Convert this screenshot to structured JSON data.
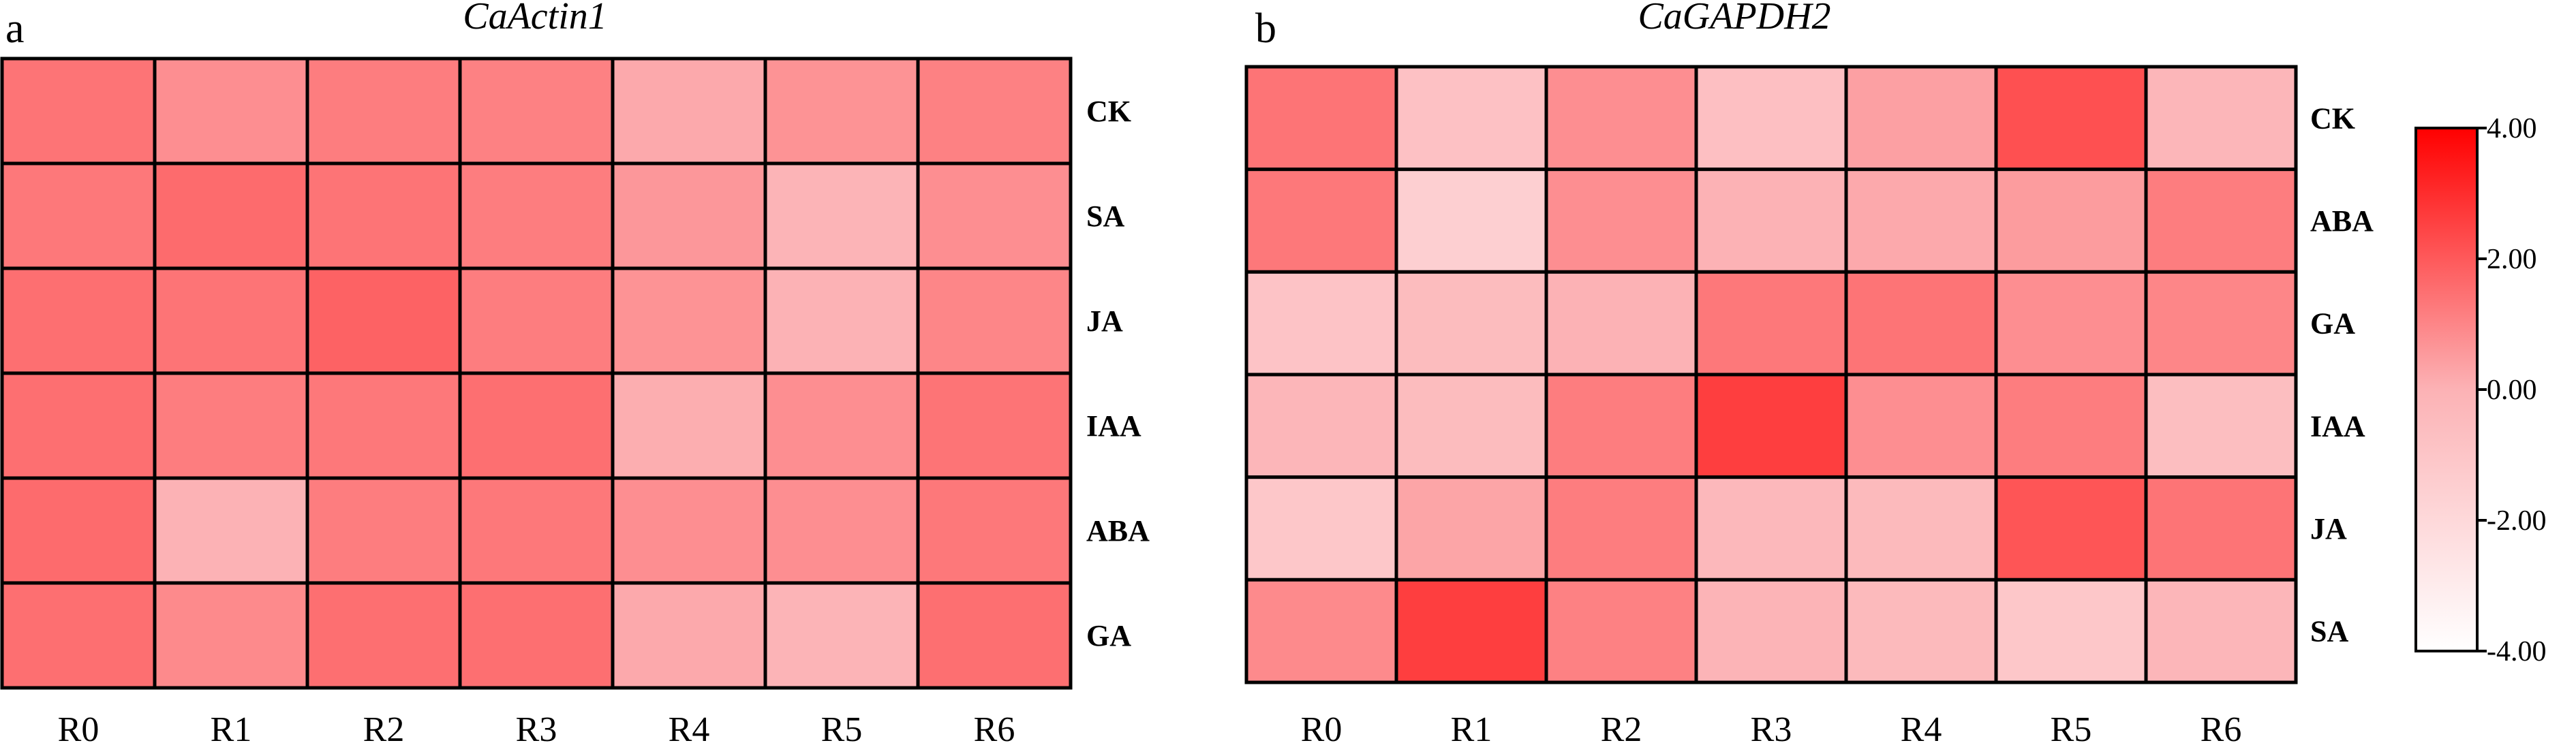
{
  "chart_data": [
    {
      "type": "heatmap",
      "panel": "a",
      "title": "CaActin1",
      "columns": [
        "R0",
        "R1",
        "R2",
        "R3",
        "R4",
        "R5",
        "R6"
      ],
      "rows": [
        "CK",
        "SA",
        "JA",
        "IAA",
        "ABA",
        "GA"
      ],
      "values": [
        [
          1.4,
          0.8,
          1.2,
          1.1,
          0.2,
          0.7,
          1.1
        ],
        [
          1.3,
          1.6,
          1.4,
          1.2,
          0.6,
          -0.1,
          0.8
        ],
        [
          1.5,
          1.4,
          1.8,
          1.2,
          0.7,
          0.0,
          1.0
        ],
        [
          1.5,
          1.2,
          1.3,
          1.5,
          0.1,
          0.8,
          1.4
        ],
        [
          1.6,
          0.0,
          1.2,
          1.3,
          0.8,
          0.8,
          1.3
        ],
        [
          1.5,
          0.9,
          1.5,
          1.5,
          0.2,
          -0.1,
          1.5
        ]
      ],
      "colorbar_range": [
        -4.0,
        4.0
      ]
    },
    {
      "type": "heatmap",
      "panel": "b",
      "title": "CaGAPDH2",
      "columns": [
        "R0",
        "R1",
        "R2",
        "R3",
        "R4",
        "R5",
        "R6"
      ],
      "rows": [
        "CK",
        "ABA",
        "GA",
        "IAA",
        "JA",
        "SA"
      ],
      "values": [
        [
          1.4,
          -0.8,
          0.8,
          -0.7,
          0.4,
          2.2,
          -0.2
        ],
        [
          1.3,
          -1.5,
          0.8,
          0.0,
          0.2,
          0.5,
          1.2
        ],
        [
          -0.9,
          -0.5,
          0.0,
          1.3,
          1.4,
          0.8,
          1.0
        ],
        [
          -0.2,
          -0.5,
          1.2,
          2.6,
          0.8,
          1.2,
          -0.6
        ],
        [
          -1.1,
          0.3,
          1.2,
          -0.3,
          -0.4,
          2.1,
          1.4
        ],
        [
          0.9,
          2.6,
          1.1,
          -0.1,
          -0.4,
          -1.1,
          -0.2
        ]
      ],
      "colorbar_range": [
        -4.0,
        4.0
      ]
    }
  ],
  "colorbar": {
    "ticks": [
      "4.00",
      "2.00",
      "0.00",
      "-2.00",
      "-4.00"
    ],
    "tick_values": [
      4,
      2,
      0,
      -2,
      -4
    ],
    "min_color": "#ffffff",
    "mid_color": "#fcb2b5",
    "max_color": "#ff0000"
  }
}
